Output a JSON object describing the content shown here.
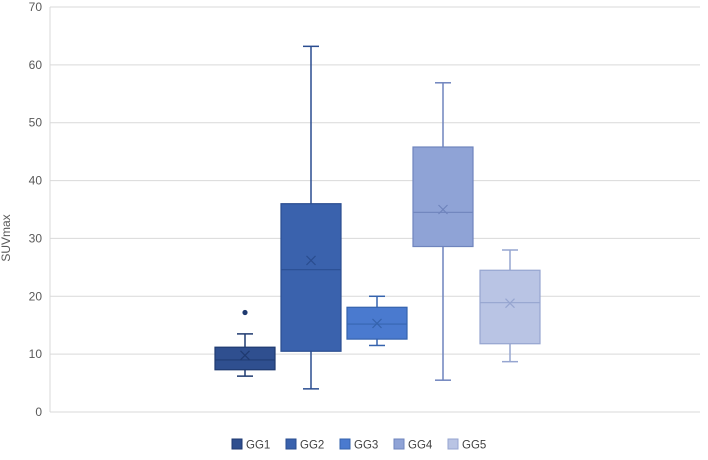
{
  "chart_data": {
    "type": "box",
    "title": "",
    "xlabel": "",
    "ylabel": "SUVmax",
    "ylim": [
      0,
      70
    ],
    "yticks": [
      0,
      10,
      20,
      30,
      40,
      50,
      60,
      70
    ],
    "grid": true,
    "legend": "bottom",
    "series": [
      {
        "name": "GG1",
        "color": "#2f4f8f",
        "stroke": "#1f3a70",
        "min": 6.2,
        "q1": 7.3,
        "median": 9.0,
        "mean": 9.8,
        "q3": 11.2,
        "max": 13.5,
        "outliers": [
          17.2
        ]
      },
      {
        "name": "GG2",
        "color": "#3a62ad",
        "stroke": "#2a4d90",
        "min": 4.0,
        "q1": 10.5,
        "median": 24.6,
        "mean": 26.2,
        "q3": 36.0,
        "max": 63.2,
        "outliers": []
      },
      {
        "name": "GG3",
        "color": "#4a7acf",
        "stroke": "#3563ad",
        "min": 11.5,
        "q1": 12.6,
        "median": 15.2,
        "mean": 15.3,
        "q3": 18.1,
        "max": 20.0,
        "outliers": []
      },
      {
        "name": "GG4",
        "color": "#8fa3d6",
        "stroke": "#6f84bd",
        "min": 5.5,
        "q1": 28.6,
        "median": 34.5,
        "mean": 35.0,
        "q3": 45.8,
        "max": 56.9,
        "outliers": []
      },
      {
        "name": "GG5",
        "color": "#b9c4e4",
        "stroke": "#96a5d0",
        "min": 8.7,
        "q1": 11.8,
        "median": 18.9,
        "mean": 18.8,
        "q3": 24.5,
        "max": 28.0,
        "outliers": []
      }
    ]
  }
}
